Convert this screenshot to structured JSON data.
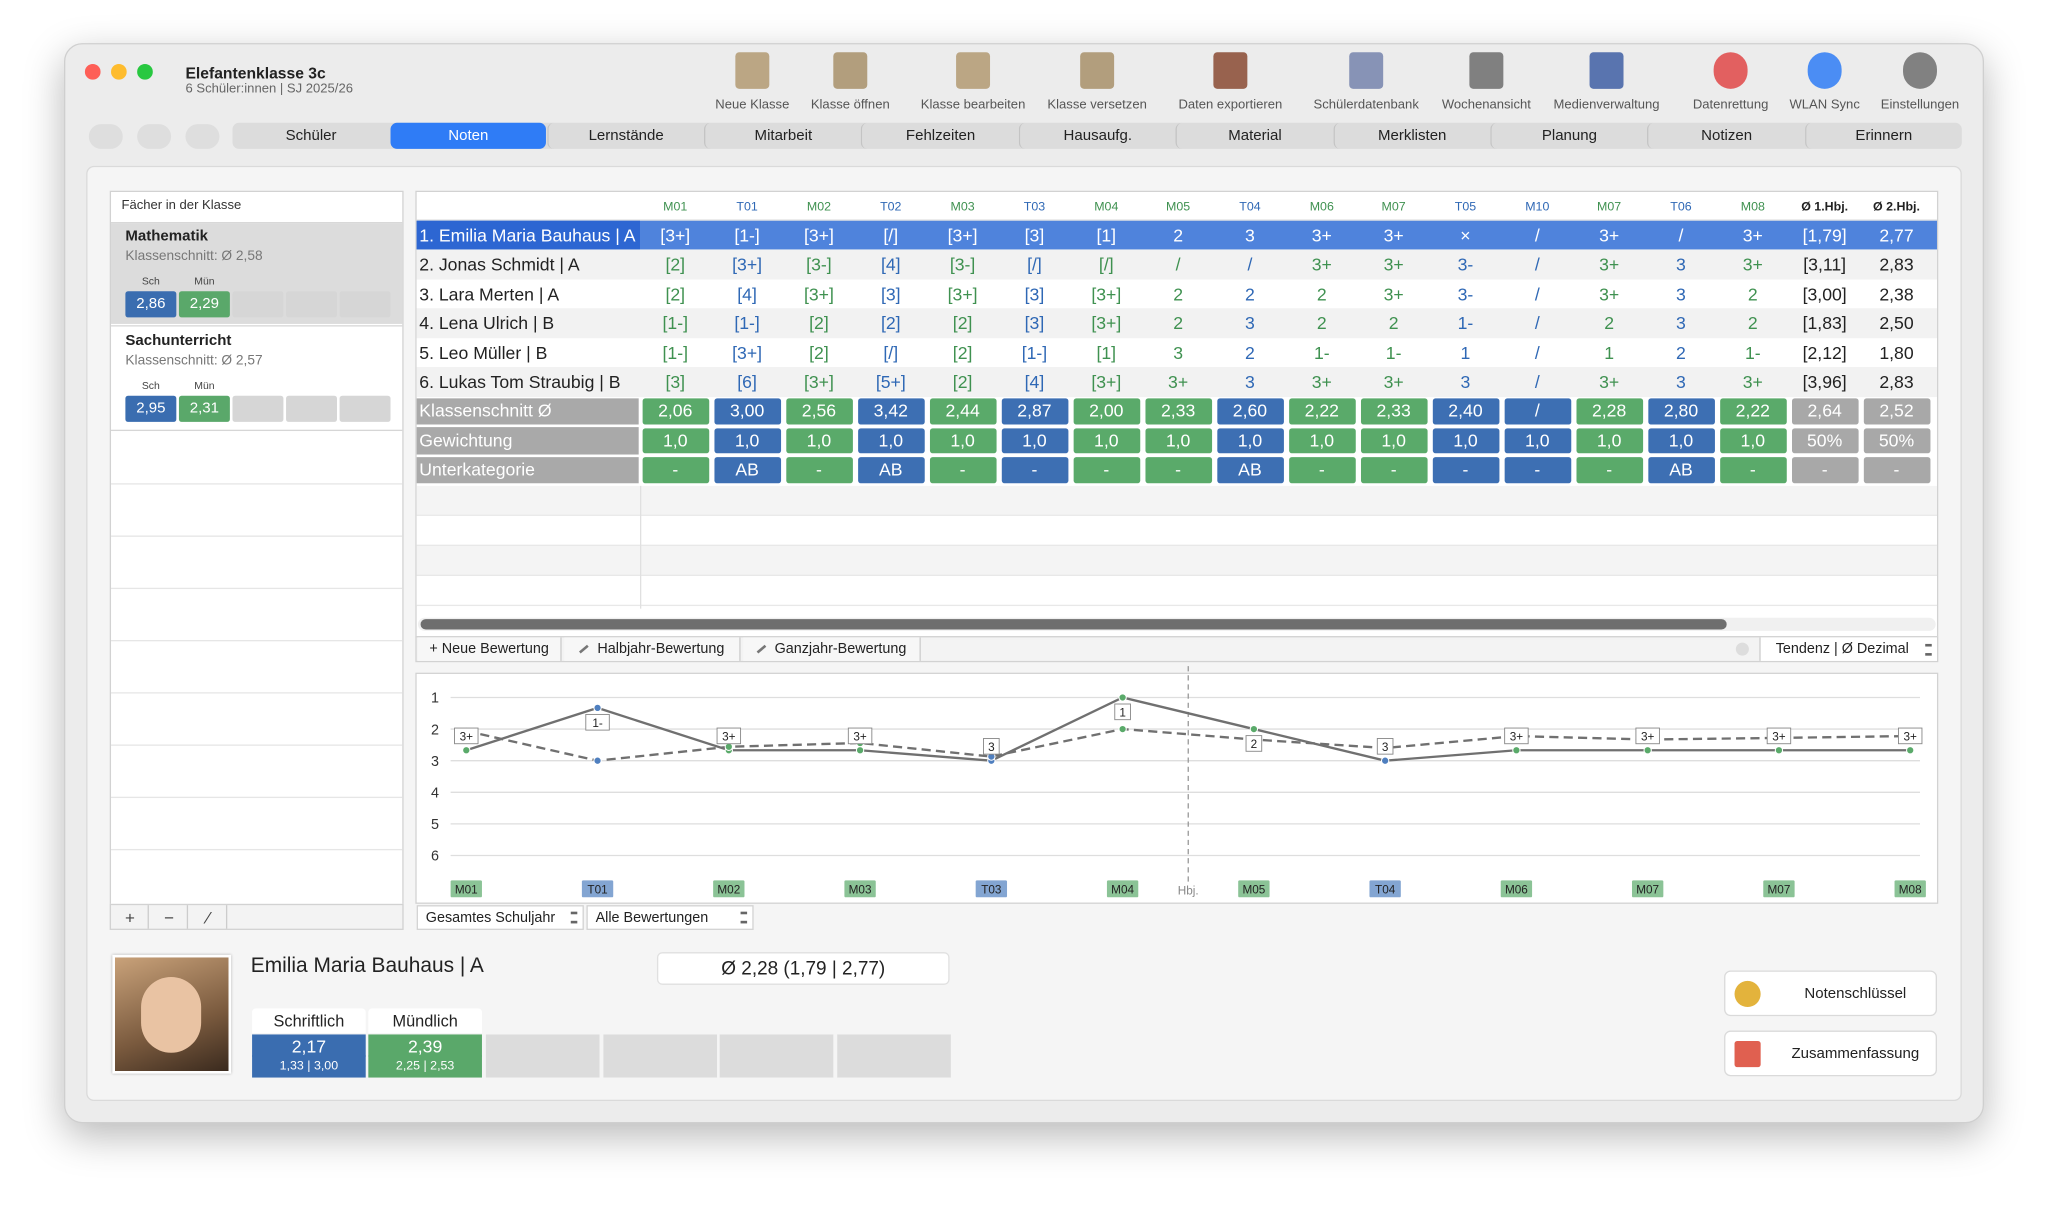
{
  "window": {
    "title": "Elefantenklasse 3c",
    "subtitle": "6 Schüler:innen | SJ 2025/26"
  },
  "toolbar": [
    "Neue Klasse",
    "Klasse öffnen",
    "Klasse bearbeiten",
    "Klasse versetzen",
    "Daten exportieren",
    "Schülerdatenbank",
    "Wochenansicht",
    "Medienverwaltung",
    "Datenrettung",
    "WLAN Sync",
    "Einstellungen"
  ],
  "tabs": {
    "items": [
      "Schüler",
      "Noten",
      "Lernstände",
      "Mitarbeit",
      "Fehlzeiten",
      "Hausaufg.",
      "Material",
      "Merklisten",
      "Planung",
      "Notizen",
      "Erinnern"
    ],
    "active": "Noten"
  },
  "subjects": {
    "header": "Fächer in der Klasse",
    "items": [
      {
        "name": "Mathematik",
        "average": "Klassenschnitt: Ø 2,58",
        "labels": [
          "Sch",
          "Mün"
        ],
        "values": [
          "2,86",
          "2,29"
        ],
        "selected": true
      },
      {
        "name": "Sachunterricht",
        "average": "Klassenschnitt: Ø 2,57",
        "labels": [
          "Sch",
          "Mün"
        ],
        "values": [
          "2,95",
          "2,31"
        ],
        "selected": false
      }
    ],
    "buttons": [
      "+",
      "−",
      "⁄"
    ]
  },
  "grades": {
    "columns": [
      {
        "label": "M01",
        "text_color": "#3f9150",
        "color": "#5aaa6a"
      },
      {
        "label": "T01",
        "text_color": "#2f68b5",
        "color": "#3d6fb3"
      },
      {
        "label": "M02",
        "text_color": "#3f9150",
        "color": "#5aaa6a"
      },
      {
        "label": "T02",
        "text_color": "#2f68b5",
        "color": "#3d6fb3"
      },
      {
        "label": "M03",
        "text_color": "#3f9150",
        "color": "#5aaa6a"
      },
      {
        "label": "T03",
        "text_color": "#2f68b5",
        "color": "#3d6fb3"
      },
      {
        "label": "M04",
        "text_color": "#3f9150",
        "color": "#5aaa6a"
      },
      {
        "label": "M05",
        "text_color": "#3f9150",
        "color": "#5aaa6a"
      },
      {
        "label": "T04",
        "text_color": "#2f68b5",
        "color": "#3d6fb3"
      },
      {
        "label": "M06",
        "text_color": "#3f9150",
        "color": "#5aaa6a"
      },
      {
        "label": "M07",
        "text_color": "#3f9150",
        "color": "#5aaa6a"
      },
      {
        "label": "T05",
        "text_color": "#2f68b5",
        "color": "#3d6fb3"
      },
      {
        "label": "M10",
        "text_color": "#2f68b5",
        "color": "#3d6fb3"
      },
      {
        "label": "M07",
        "text_color": "#3f9150",
        "color": "#5aaa6a"
      },
      {
        "label": "T06",
        "text_color": "#2f68b5",
        "color": "#3d6fb3"
      },
      {
        "label": "M08",
        "text_color": "#3f9150",
        "color": "#5aaa6a"
      },
      {
        "label": "Ø 1.Hbj.",
        "text_color": "#222222",
        "color": "#a8a8a8"
      },
      {
        "label": "Ø 2.Hbj.",
        "text_color": "#222222",
        "color": "#a8a8a8"
      }
    ],
    "students": [
      {
        "name": "1. Emilia Maria Bauhaus | A",
        "selected": true,
        "cells": [
          "[3+]",
          "[1-]",
          "[3+]",
          "[/]",
          "[3+]",
          "[3]",
          "[1]",
          "2",
          "3",
          "3+",
          "3+",
          "×",
          "/",
          "3+",
          "/",
          "3+",
          "[1,79]",
          "2,77"
        ]
      },
      {
        "name": "2. Jonas Schmidt | A",
        "selected": false,
        "cells": [
          "[2]",
          "[3+]",
          "[3-]",
          "[4]",
          "[3-]",
          "[/]",
          "[/]",
          "/",
          "/",
          "3+",
          "3+",
          "3-",
          "/",
          "3+",
          "3",
          "3+",
          "[3,11]",
          "2,83"
        ]
      },
      {
        "name": "3. Lara Merten | A",
        "selected": false,
        "cells": [
          "[2]",
          "[4]",
          "[3+]",
          "[3]",
          "[3+]",
          "[3]",
          "[3+]",
          "2",
          "2",
          "2",
          "3+",
          "3-",
          "/",
          "3+",
          "3",
          "2",
          "[3,00]",
          "2,38"
        ]
      },
      {
        "name": "4. Lena Ulrich | B",
        "selected": false,
        "cells": [
          "[1-]",
          "[1-]",
          "[2]",
          "[2]",
          "[2]",
          "[3]",
          "[3+]",
          "2",
          "3",
          "2",
          "2",
          "1-",
          "/",
          "2",
          "3",
          "2",
          "[1,83]",
          "2,50"
        ]
      },
      {
        "name": "5. Leo Müller | B",
        "selected": false,
        "cells": [
          "[1-]",
          "[3+]",
          "[2]",
          "[/]",
          "[2]",
          "[1-]",
          "[1]",
          "3",
          "2",
          "1-",
          "1-",
          "1",
          "/",
          "1",
          "2",
          "1-",
          "[2,12]",
          "1,80"
        ]
      },
      {
        "name": "6. Lukas Tom Straubig | B",
        "selected": false,
        "cells": [
          "[3]",
          "[6]",
          "[3+]",
          "[5+]",
          "[2]",
          "[4]",
          "[3+]",
          "3+",
          "3",
          "3+",
          "3+",
          "3",
          "/",
          "3+",
          "3",
          "3+",
          "[3,96]",
          "2,83"
        ]
      }
    ],
    "summary": [
      {
        "label": "Klassenschnitt Ø",
        "cells": [
          "2,06",
          "3,00",
          "2,56",
          "3,42",
          "2,44",
          "2,87",
          "2,00",
          "2,33",
          "2,60",
          "2,22",
          "2,33",
          "2,40",
          "/",
          "2,28",
          "2,80",
          "2,22",
          "2,64",
          "2,52"
        ]
      },
      {
        "label": "Gewichtung",
        "cells": [
          "1,0",
          "1,0",
          "1,0",
          "1,0",
          "1,0",
          "1,0",
          "1,0",
          "1,0",
          "1,0",
          "1,0",
          "1,0",
          "1,0",
          "1,0",
          "1,0",
          "1,0",
          "1,0",
          "50%",
          "50%"
        ]
      },
      {
        "label": "Unterkategorie",
        "cells": [
          "-",
          "AB",
          "-",
          "AB",
          "-",
          "-",
          "-",
          "-",
          "AB",
          "-",
          "-",
          "-",
          "-",
          "-",
          "AB",
          "-",
          "-",
          "-"
        ]
      }
    ]
  },
  "actions": [
    "+ Neue Bewertung",
    "Halbjahr-Bewertung",
    "Ganzjahr-Bewertung"
  ],
  "display_mode": "Tendenz | Ø Dezimal",
  "chart_data": {
    "type": "line",
    "categories": [
      "M01",
      "T01",
      "M02",
      "M03",
      "T03",
      "M04",
      "M05",
      "T04",
      "M06",
      "M07",
      "M07",
      "M08"
    ],
    "category_colors": [
      "#5aaa6a",
      "#4f7fbf",
      "#5aaa6a",
      "#5aaa6a",
      "#4f7fbf",
      "#5aaa6a",
      "#5aaa6a",
      "#4f7fbf",
      "#5aaa6a",
      "#5aaa6a",
      "#5aaa6a",
      "#5aaa6a"
    ],
    "divider": {
      "label": "Hbj.",
      "between": [
        "M04",
        "M05"
      ]
    },
    "ylim": [
      1,
      6
    ],
    "yticks": [
      1,
      2,
      3,
      4,
      5,
      6
    ],
    "y_inverted": true,
    "grid": true,
    "series": [
      {
        "style": "solid",
        "color": "#707070",
        "values": [
          2.67,
          1.33,
          2.67,
          2.67,
          3,
          1,
          2,
          3,
          2.67,
          2.67,
          2.67,
          2.67
        ],
        "value_labels": [
          "3+",
          "1-",
          "3+",
          "3+",
          "3",
          "1",
          "2",
          "3",
          "3+",
          "3+",
          "3+",
          "3+"
        ]
      },
      {
        "style": "dashed",
        "color": "#707070",
        "values": [
          2.06,
          3.0,
          2.56,
          2.44,
          2.87,
          2.0,
          2.33,
          2.6,
          2.22,
          2.33,
          2.28,
          2.22
        ]
      }
    ]
  },
  "filters": [
    "Gesamtes Schuljahr",
    "Alle Bewertungen"
  ],
  "student": {
    "name": "Emilia Maria Bauhaus | A",
    "average": "Ø 2,28 (1,79 | 2,77)",
    "parts": [
      {
        "label": "Schriftlich",
        "value": "2,17",
        "range": "1,33 | 3,00",
        "color": "#3a6db0"
      },
      {
        "label": "Mündlich",
        "value": "2,39",
        "range": "2,25 | 2,53",
        "color": "#5aa86a"
      }
    ]
  },
  "side_buttons": [
    "Notenschlüssel",
    "Zusammenfassung"
  ]
}
